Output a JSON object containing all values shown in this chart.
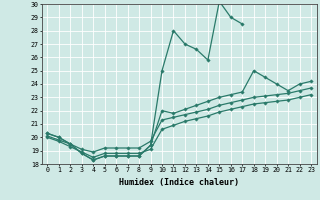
{
  "xlabel": "Humidex (Indice chaleur)",
  "xlim": [
    -0.5,
    23.5
  ],
  "ylim": [
    18,
    30
  ],
  "xticks": [
    0,
    1,
    2,
    3,
    4,
    5,
    6,
    7,
    8,
    9,
    10,
    11,
    12,
    13,
    14,
    15,
    16,
    17,
    18,
    19,
    20,
    21,
    22,
    23
  ],
  "yticks": [
    18,
    19,
    20,
    21,
    22,
    23,
    24,
    25,
    26,
    27,
    28,
    29,
    30
  ],
  "bg_color": "#cfe9e5",
  "line_color": "#2a7a6a",
  "series": [
    {
      "x": [
        0,
        1,
        2,
        3,
        4,
        5,
        6,
        7,
        8,
        9,
        10,
        11,
        12,
        13,
        14,
        15,
        16,
        17,
        18,
        19,
        20,
        21,
        22,
        23
      ],
      "y": [
        20.3,
        20.0,
        19.5,
        18.8,
        18.3,
        18.6,
        18.6,
        18.6,
        18.6,
        19.4,
        25.0,
        28.0,
        27.0,
        26.6,
        25.8,
        30.2,
        29.0,
        28.5,
        null,
        null,
        null,
        null,
        null,
        null
      ]
    },
    {
      "x": [
        0,
        1,
        2,
        3,
        4,
        5,
        6,
        7,
        8,
        9,
        10,
        11,
        12,
        13,
        14,
        15,
        16,
        17,
        18,
        19,
        20,
        21,
        22,
        23
      ],
      "y": [
        20.3,
        20.0,
        19.5,
        18.8,
        18.3,
        18.6,
        18.6,
        18.6,
        18.6,
        19.4,
        22.0,
        21.8,
        22.1,
        22.4,
        22.7,
        23.0,
        23.2,
        23.4,
        25.0,
        24.5,
        24.0,
        23.5,
        24.0,
        24.2
      ]
    },
    {
      "x": [
        0,
        1,
        2,
        3,
        4,
        5,
        6,
        7,
        8,
        9,
        10,
        11,
        12,
        13,
        14,
        15,
        16,
        17,
        18,
        19,
        20,
        21,
        22,
        23
      ],
      "y": [
        20.1,
        19.8,
        19.5,
        19.1,
        18.9,
        19.2,
        19.2,
        19.2,
        19.2,
        19.7,
        21.3,
        21.5,
        21.7,
        21.9,
        22.1,
        22.4,
        22.6,
        22.8,
        23.0,
        23.1,
        23.2,
        23.3,
        23.5,
        23.7
      ]
    },
    {
      "x": [
        0,
        1,
        2,
        3,
        4,
        5,
        6,
        7,
        8,
        9,
        10,
        11,
        12,
        13,
        14,
        15,
        16,
        17,
        18,
        19,
        20,
        21,
        22,
        23
      ],
      "y": [
        20.0,
        19.7,
        19.3,
        18.9,
        18.5,
        18.8,
        18.8,
        18.8,
        18.8,
        19.1,
        20.6,
        20.9,
        21.2,
        21.4,
        21.6,
        21.9,
        22.1,
        22.3,
        22.5,
        22.6,
        22.7,
        22.8,
        23.0,
        23.2
      ]
    }
  ]
}
